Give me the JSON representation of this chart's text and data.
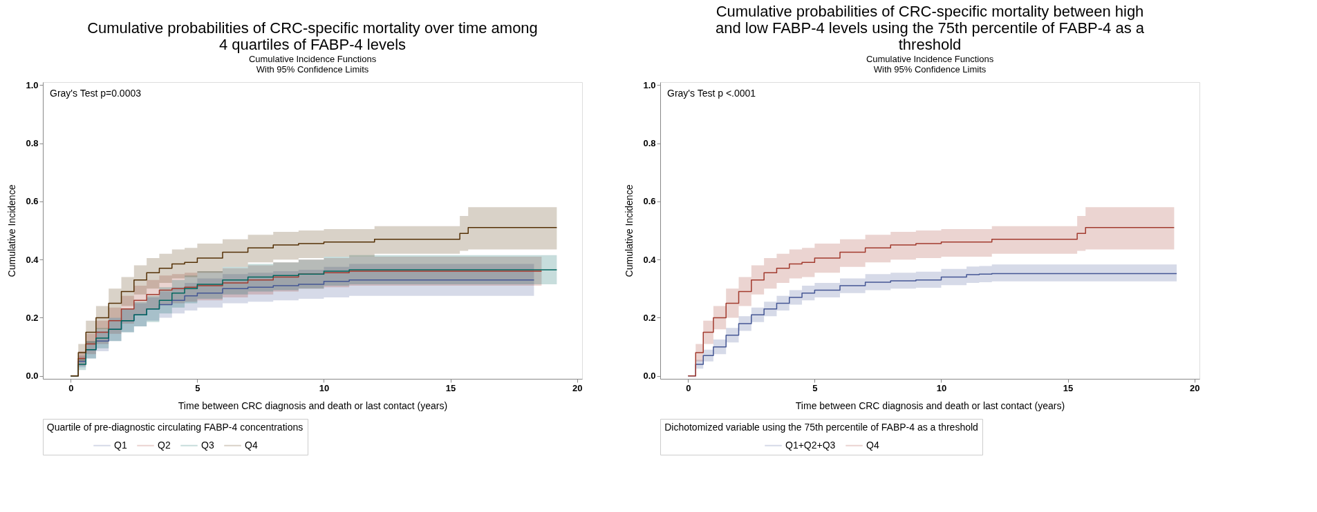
{
  "chart_data": [
    {
      "type": "step",
      "title": "Cumulative probabilities of CRC-specific mortality over time among 4 quartiles of FABP-4 levels",
      "subtitle": "Cumulative Incidence Functions",
      "annotations": [
        "With 95% Confidence Limits",
        "Gray's Test p=0.0003"
      ],
      "xlabel": "Time between CRC diagnosis and death or last contact (years)",
      "ylabel": "Cumulative Incidence",
      "legend_title": "Quartile of pre-diagnostic circulating FABP-4 concentrations",
      "legend": "bottom",
      "grid": false,
      "line_style": "solid",
      "xlim": [
        -1.1,
        20.2
      ],
      "ylim": [
        -0.01,
        1.01
      ],
      "xticks": [
        0,
        5,
        10,
        15,
        20
      ],
      "yticks": [
        {
          "value": 0,
          "label": "0.0"
        },
        {
          "value": 0.2,
          "label": "0.2"
        },
        {
          "value": 0.4,
          "label": "0.4"
        },
        {
          "value": 0.6,
          "label": "0.6"
        },
        {
          "value": 0.8,
          "label": "0.8"
        },
        {
          "value": 1,
          "label": "1.0"
        }
      ],
      "series": [
        {
          "name": "Q1",
          "color": "#445694",
          "x": [
            0,
            0.3,
            0.6,
            1,
            1.5,
            2,
            2.5,
            3,
            3.5,
            4,
            4.5,
            5,
            6,
            7,
            8,
            9,
            10,
            11,
            12,
            18.3
          ],
          "values": [
            0,
            0.05,
            0.09,
            0.12,
            0.16,
            0.19,
            0.21,
            0.23,
            0.245,
            0.26,
            0.275,
            0.285,
            0.3,
            0.305,
            0.31,
            0.315,
            0.325,
            0.33,
            0.33,
            0.33
          ],
          "lower": [
            0,
            0.03,
            0.06,
            0.085,
            0.12,
            0.15,
            0.17,
            0.19,
            0.2,
            0.215,
            0.225,
            0.235,
            0.25,
            0.255,
            0.26,
            0.265,
            0.27,
            0.275,
            0.275,
            0.275
          ],
          "upper": [
            0,
            0.07,
            0.12,
            0.155,
            0.2,
            0.23,
            0.25,
            0.27,
            0.29,
            0.305,
            0.32,
            0.335,
            0.35,
            0.355,
            0.36,
            0.365,
            0.375,
            0.385,
            0.385,
            0.385
          ]
        },
        {
          "name": "Q2",
          "color": "#A23A2E",
          "x": [
            0,
            0.3,
            0.6,
            1,
            1.5,
            2,
            2.5,
            3,
            3.5,
            4,
            4.5,
            5,
            6,
            7,
            8,
            9,
            10,
            11,
            12,
            18.6
          ],
          "values": [
            0,
            0.06,
            0.11,
            0.15,
            0.19,
            0.23,
            0.26,
            0.28,
            0.295,
            0.3,
            0.305,
            0.31,
            0.32,
            0.33,
            0.34,
            0.35,
            0.355,
            0.36,
            0.36,
            0.36
          ],
          "lower": [
            0,
            0.035,
            0.075,
            0.11,
            0.145,
            0.18,
            0.21,
            0.23,
            0.245,
            0.25,
            0.255,
            0.26,
            0.27,
            0.28,
            0.29,
            0.3,
            0.305,
            0.31,
            0.31,
            0.31
          ],
          "upper": [
            0,
            0.085,
            0.145,
            0.19,
            0.235,
            0.275,
            0.31,
            0.33,
            0.345,
            0.35,
            0.355,
            0.36,
            0.37,
            0.38,
            0.39,
            0.4,
            0.405,
            0.41,
            0.41,
            0.41
          ]
        },
        {
          "name": "Q3",
          "color": "#01665E",
          "x": [
            0,
            0.3,
            0.6,
            1,
            1.5,
            2,
            2.5,
            3,
            3.5,
            4,
            4.5,
            5,
            6,
            7,
            8,
            9,
            10,
            11,
            12,
            19.2
          ],
          "values": [
            0,
            0.04,
            0.09,
            0.13,
            0.16,
            0.19,
            0.21,
            0.23,
            0.26,
            0.285,
            0.3,
            0.315,
            0.33,
            0.34,
            0.345,
            0.35,
            0.36,
            0.365,
            0.365,
            0.365
          ],
          "lower": [
            0,
            0.02,
            0.06,
            0.095,
            0.12,
            0.15,
            0.17,
            0.185,
            0.215,
            0.235,
            0.25,
            0.265,
            0.28,
            0.29,
            0.295,
            0.3,
            0.31,
            0.315,
            0.315,
            0.315
          ],
          "upper": [
            0,
            0.06,
            0.12,
            0.165,
            0.2,
            0.23,
            0.255,
            0.275,
            0.305,
            0.33,
            0.345,
            0.36,
            0.375,
            0.385,
            0.39,
            0.4,
            0.41,
            0.415,
            0.415,
            0.415
          ]
        },
        {
          "name": "Q4",
          "color": "#543005",
          "x": [
            0,
            0.3,
            0.6,
            1,
            1.5,
            2,
            2.5,
            3,
            3.5,
            4,
            4.5,
            5,
            6,
            7,
            8,
            9,
            10,
            12,
            15.37,
            15.7,
            19.2
          ],
          "values": [
            0,
            0.08,
            0.15,
            0.2,
            0.25,
            0.29,
            0.33,
            0.355,
            0.37,
            0.385,
            0.39,
            0.405,
            0.425,
            0.44,
            0.45,
            0.455,
            0.46,
            0.47,
            0.49,
            0.51,
            0.51
          ],
          "lower": [
            0,
            0.05,
            0.11,
            0.16,
            0.2,
            0.24,
            0.28,
            0.3,
            0.32,
            0.335,
            0.34,
            0.355,
            0.375,
            0.39,
            0.4,
            0.405,
            0.41,
            0.42,
            0.43,
            0.435,
            0.435
          ],
          "upper": [
            0,
            0.11,
            0.19,
            0.24,
            0.3,
            0.34,
            0.38,
            0.405,
            0.42,
            0.435,
            0.44,
            0.455,
            0.47,
            0.485,
            0.495,
            0.5,
            0.505,
            0.515,
            0.55,
            0.58,
            0.58
          ]
        }
      ]
    },
    {
      "type": "step",
      "title": "Cumulative probabilities of CRC-specific mortality between high and low FABP-4 levels using the 75th percentile of FABP-4 as a threshold",
      "subtitle": "Cumulative Incidence Functions",
      "annotations": [
        "With 95% Confidence Limits",
        "Gray's Test p <.0001"
      ],
      "xlabel": "Time between CRC diagnosis and death or last contact (years)",
      "ylabel": "Cumulative Incidence",
      "legend_title": "Dichotomized variable using the 75th percentile of FABP-4 as a threshold",
      "legend": "bottom",
      "grid": false,
      "line_style": "solid",
      "xlim": [
        -1.1,
        20.2
      ],
      "ylim": [
        -0.01,
        1.01
      ],
      "xticks": [
        0,
        5,
        10,
        15,
        20
      ],
      "yticks": [
        {
          "value": 0,
          "label": "0.0"
        },
        {
          "value": 0.2,
          "label": "0.2"
        },
        {
          "value": 0.4,
          "label": "0.4"
        },
        {
          "value": 0.6,
          "label": "0.6"
        },
        {
          "value": 0.8,
          "label": "0.8"
        },
        {
          "value": 1,
          "label": "1.0"
        }
      ],
      "series": [
        {
          "name": "Q1+Q2+Q3",
          "color": "#445694",
          "x": [
            0,
            0.3,
            0.6,
            1,
            1.5,
            2,
            2.5,
            3,
            3.5,
            4,
            4.5,
            5,
            6,
            7,
            8,
            9,
            10,
            11,
            11.5,
            12,
            19.3
          ],
          "values": [
            0,
            0.04,
            0.07,
            0.1,
            0.14,
            0.18,
            0.21,
            0.23,
            0.25,
            0.27,
            0.285,
            0.295,
            0.31,
            0.322,
            0.327,
            0.33,
            0.34,
            0.348,
            0.35,
            0.352,
            0.352
          ],
          "lower": [
            0,
            0.025,
            0.05,
            0.075,
            0.115,
            0.155,
            0.185,
            0.205,
            0.225,
            0.245,
            0.26,
            0.27,
            0.285,
            0.295,
            0.3,
            0.303,
            0.312,
            0.32,
            0.322,
            0.325,
            0.325
          ],
          "upper": [
            0,
            0.055,
            0.09,
            0.125,
            0.165,
            0.205,
            0.235,
            0.255,
            0.275,
            0.295,
            0.31,
            0.32,
            0.335,
            0.35,
            0.355,
            0.358,
            0.368,
            0.376,
            0.378,
            0.383,
            0.383
          ]
        },
        {
          "name": "Q4",
          "color": "#A23A2E",
          "x": [
            0,
            0.3,
            0.6,
            1,
            1.5,
            2,
            2.5,
            3,
            3.5,
            4,
            4.5,
            5,
            6,
            7,
            8,
            9,
            10,
            12,
            15.37,
            15.7,
            19.2
          ],
          "values": [
            0,
            0.08,
            0.15,
            0.2,
            0.25,
            0.29,
            0.33,
            0.355,
            0.37,
            0.385,
            0.39,
            0.405,
            0.425,
            0.44,
            0.45,
            0.455,
            0.46,
            0.47,
            0.49,
            0.51,
            0.51
          ],
          "lower": [
            0,
            0.05,
            0.11,
            0.16,
            0.2,
            0.24,
            0.28,
            0.3,
            0.32,
            0.335,
            0.34,
            0.355,
            0.375,
            0.39,
            0.4,
            0.405,
            0.41,
            0.42,
            0.43,
            0.435,
            0.435
          ],
          "upper": [
            0,
            0.11,
            0.19,
            0.24,
            0.3,
            0.34,
            0.38,
            0.405,
            0.42,
            0.435,
            0.44,
            0.455,
            0.47,
            0.485,
            0.495,
            0.5,
            0.505,
            0.515,
            0.55,
            0.58,
            0.58
          ]
        }
      ]
    }
  ]
}
